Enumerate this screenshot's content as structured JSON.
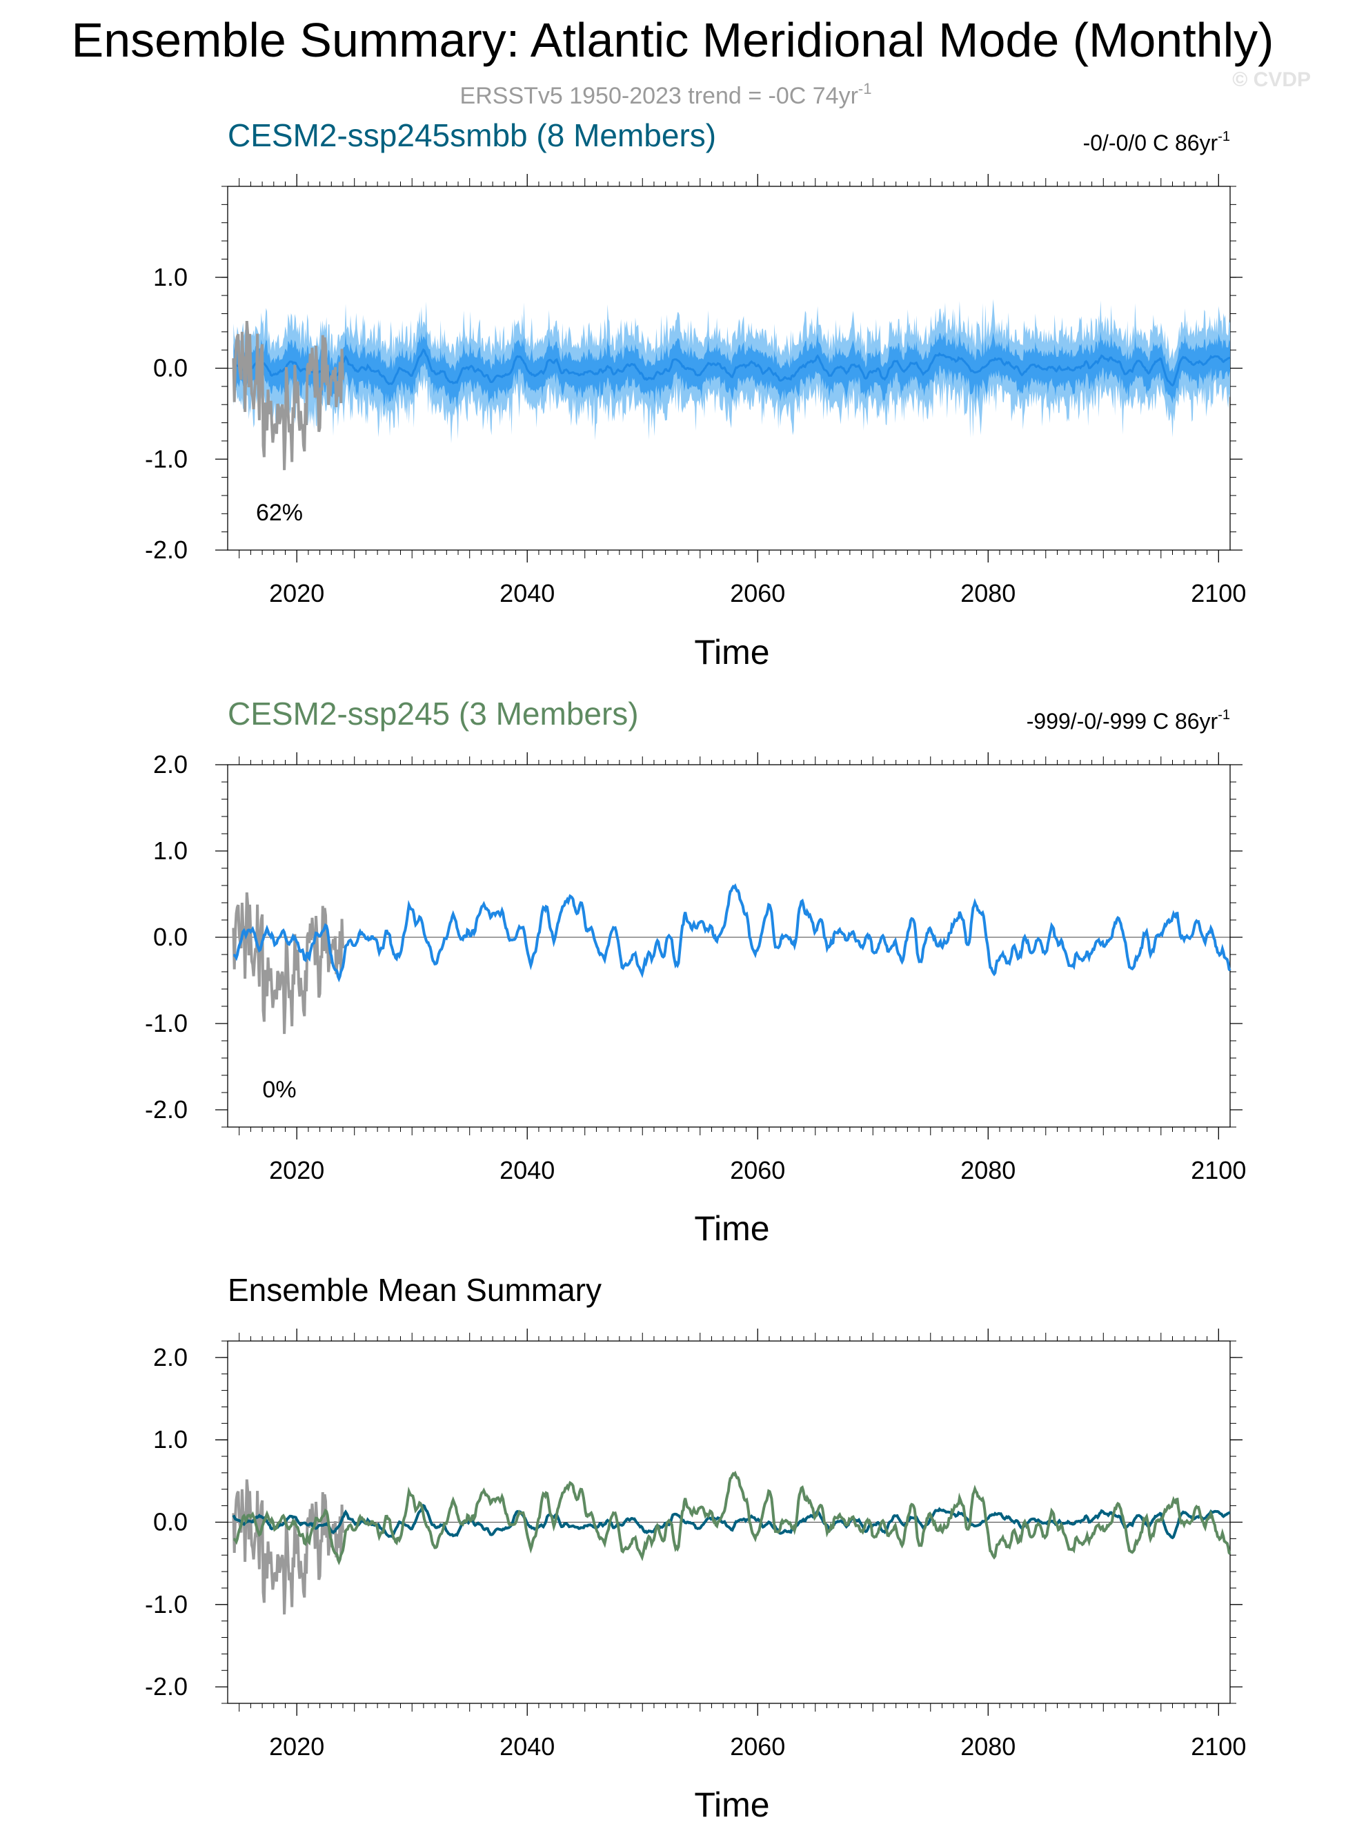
{
  "header": {
    "title": "Ensemble Summary: Atlantic Meridional Mode (Monthly)",
    "obs_subtitle": "ERSSTv5 1950-2023 trend = -0C 74yr",
    "obs_subtitle_sup": "-1",
    "copyright": "© CVDP"
  },
  "colors": {
    "obs": "#9a9a9a",
    "model_mean": "#1e88e5",
    "spread_outer": "#8cc8f5",
    "spread_inner": "#3c9ff0",
    "ens1_title": "#00607f",
    "ens2_title": "#5e8a61",
    "ens1_mean_line": "#00607f",
    "ens2_mean_line": "#5e8a61"
  },
  "chart_data": [
    {
      "type": "area",
      "panel_title": "CESM2-ssp245smbb (8 Members)",
      "trend_label": "-0/-0/0 C 86yr",
      "trend_sup": "-1",
      "percent_label": "62%",
      "xlabel": "Time",
      "xlim": [
        2014,
        2101
      ],
      "ylim": [
        -2.0,
        2.0
      ],
      "xticks": [
        "2020",
        "2040",
        "2060",
        "2080",
        "2100"
      ],
      "yticks": [
        "1.0",
        "0.0",
        "-1.0",
        "-2.0"
      ],
      "series": [
        {
          "role": "ensemble mean",
          "x_start": 2014.5,
          "x_end": 2101.0,
          "band_outer_halfwidth": 0.45,
          "band_inner_halfwidth": 0.2,
          "approx_range": [
            -0.35,
            0.45
          ]
        },
        {
          "role": "observations",
          "x_start": 2014.5,
          "x_end": 2024.0,
          "approx_range": [
            -1.25,
            0.72
          ]
        }
      ]
    },
    {
      "type": "line",
      "panel_title": "CESM2-ssp245 (3 Members)",
      "trend_label": "-999/-0/-999 C 86yr",
      "trend_sup": "-1",
      "percent_label": "0%",
      "xlabel": "Time",
      "xlim": [
        2014,
        2101
      ],
      "ylim": [
        -2.2,
        2.0
      ],
      "xticks": [
        "2020",
        "2040",
        "2060",
        "2080",
        "2100"
      ],
      "yticks": [
        "2.0",
        "1.0",
        "0.0",
        "-1.0",
        "-2.0"
      ],
      "series": [
        {
          "role": "ensemble mean",
          "x_start": 2014.5,
          "x_end": 2101.0,
          "approx_range": [
            -0.6,
            0.7
          ]
        },
        {
          "role": "observations",
          "x_start": 2014.5,
          "x_end": 2024.0,
          "approx_range": [
            -1.25,
            0.72
          ]
        }
      ]
    },
    {
      "type": "line",
      "panel_title": "Ensemble Mean Summary",
      "xlabel": "Time",
      "xlim": [
        2014,
        2101
      ],
      "ylim": [
        -2.2,
        2.2
      ],
      "xticks": [
        "2020",
        "2040",
        "2060",
        "2080",
        "2100"
      ],
      "yticks": [
        "2.0",
        "1.0",
        "0.0",
        "-1.0",
        "-2.0"
      ],
      "series": [
        {
          "role": "CESM2-ssp245smbb mean",
          "x_start": 2014.5,
          "x_end": 2101.0,
          "approx_range": [
            -0.35,
            0.45
          ]
        },
        {
          "role": "CESM2-ssp245 mean",
          "x_start": 2014.5,
          "x_end": 2101.0,
          "approx_range": [
            -0.6,
            0.7
          ]
        },
        {
          "role": "observations",
          "x_start": 2014.5,
          "x_end": 2024.0,
          "approx_range": [
            -1.25,
            0.72
          ]
        }
      ]
    }
  ]
}
